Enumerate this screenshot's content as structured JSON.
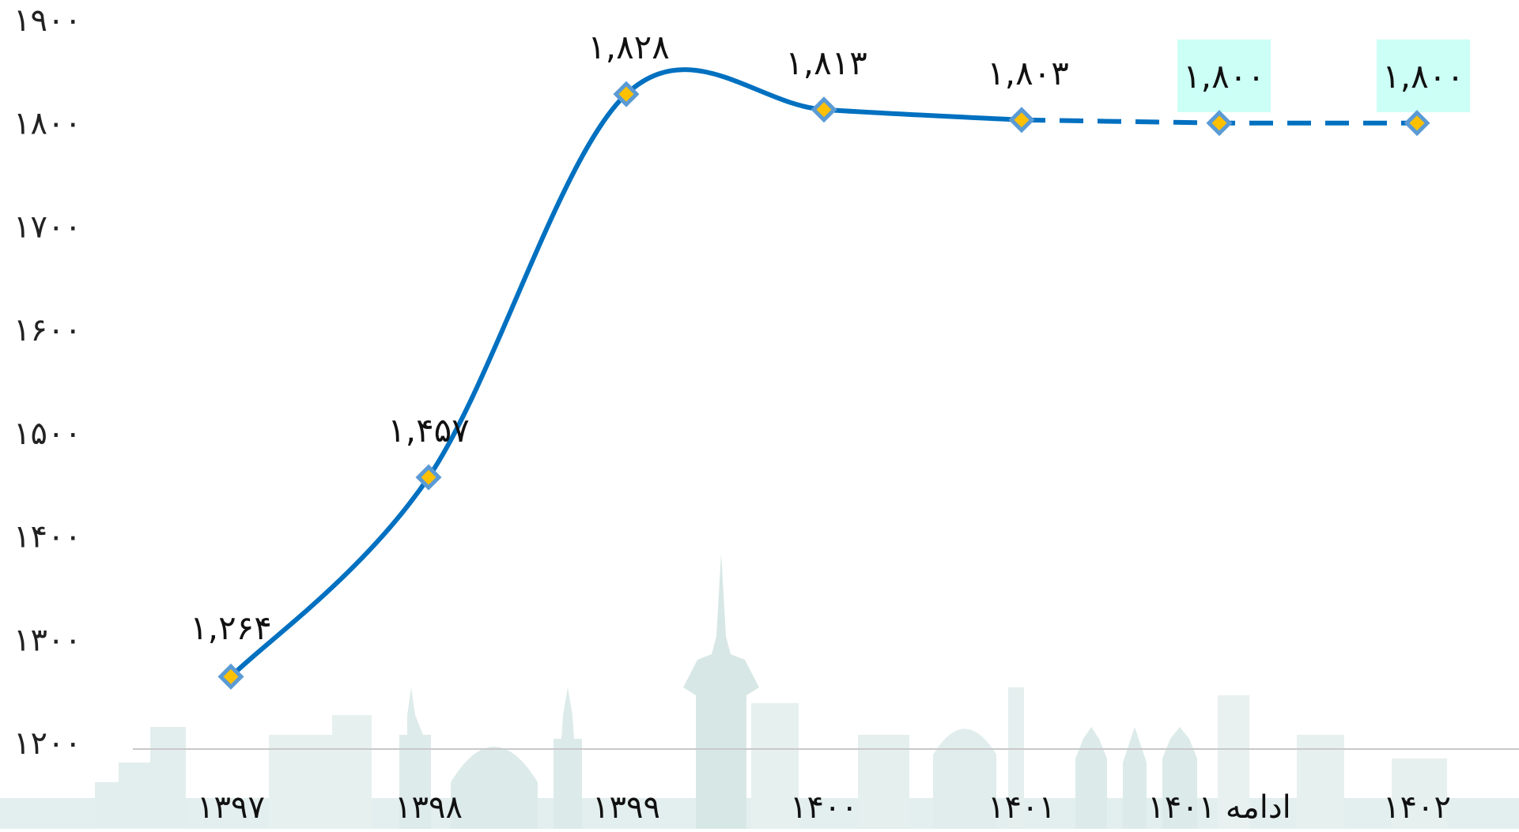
{
  "chart_data": {
    "type": "line",
    "title": "",
    "xlabel": "",
    "ylabel": "",
    "categories": [
      "۱۳۹۷",
      "۱۳۹۸",
      "۱۳۹۹",
      "۱۴۰۰",
      "۱۴۰۱",
      "ادامه ۱۴۰۱",
      "۱۴۰۲"
    ],
    "values": [
      1264,
      1457,
      1828,
      1813,
      1803,
      1800,
      1800
    ],
    "value_labels": [
      "۱,۲۶۴",
      "۱,۴۵۷",
      "۱,۸۲۸",
      "۱,۸۱۳",
      "۱,۸۰۳",
      "۱,۸۰۰",
      "۱,۸۰۰"
    ],
    "highlighted_label_indices": [
      5,
      6
    ],
    "dashed_from_index": 4,
    "ylim": [
      1200,
      1900
    ],
    "yticks": [
      1200,
      1300,
      1400,
      1500,
      1600,
      1700,
      1800,
      1900
    ],
    "ytick_labels": [
      "۱۲۰۰",
      "۱۳۰۰",
      "۱۴۰۰",
      "۱۵۰۰",
      "۱۶۰۰",
      "۱۷۰۰",
      "۱۸۰۰",
      "۱۹۰۰"
    ],
    "grid": false,
    "legend": "none",
    "colors": {
      "line": "#0070C0",
      "marker_fill": "#FFC000",
      "marker_stroke": "#5B9BD5",
      "highlight_bg": "#CCFFF5",
      "skyline": "#DCEBEA"
    }
  }
}
